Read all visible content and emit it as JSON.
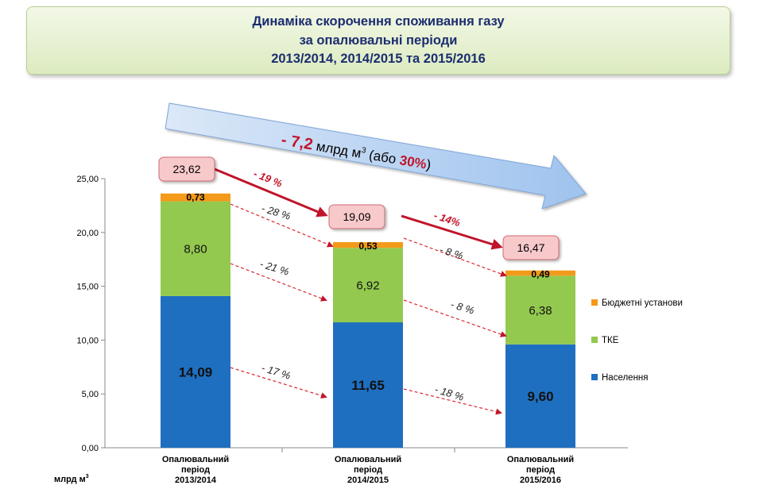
{
  "title": {
    "line1": "Динаміка скорочення споживання газу",
    "line2": "за опалювальні періоди",
    "line3": "2013/2014, 2014/2015 та 2015/2016"
  },
  "banner": {
    "prefix": "- 7,2",
    "unit_text": " млрд м",
    "superscript": "3",
    "middle": " (або ",
    "percent": "30%",
    "suffix": ")"
  },
  "unit_label": "млрд м",
  "unit_superscript": "3",
  "colors": {
    "naselennya": "#1f6fc0",
    "tke": "#93c94f",
    "budget": "#f39a1a",
    "arrow_red": "#c0152b",
    "total_box": "#f8c9cb"
  },
  "chart_data": {
    "type": "bar",
    "stacked": true,
    "categories": [
      "Опалювальний період 2013/2014",
      "Опалювальний період 2014/2015",
      "Опалювальний період 2015/2016"
    ],
    "category_lines": [
      [
        "Опалювальний",
        "період",
        "2013/2014"
      ],
      [
        "Опалювальний",
        "період",
        "2014/2015"
      ],
      [
        "Опалювальний",
        "період",
        "2015/2016"
      ]
    ],
    "series": [
      {
        "name": "Населення",
        "values": [
          14.09,
          11.65,
          9.6
        ],
        "labels": [
          "14,09",
          "11,65",
          "9,60"
        ],
        "color": "#1f6fc0"
      },
      {
        "name": "ТКЕ",
        "values": [
          8.8,
          6.92,
          6.38
        ],
        "labels": [
          "8,80",
          "6,92",
          "6,38"
        ],
        "color": "#93c94f"
      },
      {
        "name": "Бюджетні установи",
        "values": [
          0.73,
          0.53,
          0.49
        ],
        "labels": [
          "0,73",
          "0,53",
          "0,49"
        ],
        "color": "#f39a1a"
      }
    ],
    "totals": [
      23.62,
      19.09,
      16.47
    ],
    "total_labels": [
      "23,62",
      "19,09",
      "16,47"
    ],
    "total_changes": [
      "- 19 %",
      "- 14%"
    ],
    "series_changes": {
      "Населення": [
        "- 17 %",
        "- 18 %"
      ],
      "ТКЕ": [
        "- 21 %",
        "- 8 %"
      ],
      "Бюджетні установи": [
        "- 28 %",
        "- 8 %"
      ]
    },
    "ylim": [
      0,
      25
    ],
    "yticks": [
      0,
      5,
      10,
      15,
      20,
      25
    ],
    "ytick_labels": [
      "0,00",
      "5,00",
      "10,00",
      "15,00",
      "20,00",
      "25,00"
    ],
    "legend_position": "right",
    "legend_order": [
      "Бюджетні установи",
      "ТКЕ",
      "Населення"
    ]
  }
}
